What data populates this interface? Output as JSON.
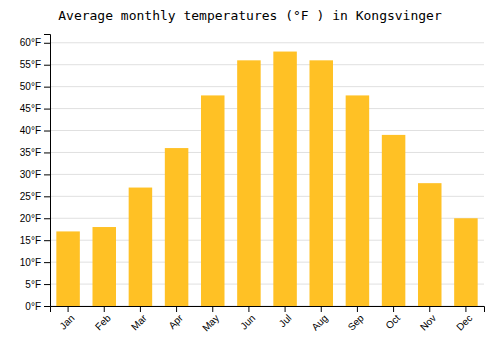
{
  "chart_data": {
    "type": "bar",
    "title": "Average monthly temperatures (°F ) in Kongsvinger",
    "categories": [
      "Jan",
      "Feb",
      "Mar",
      "Apr",
      "May",
      "Jun",
      "Jul",
      "Aug",
      "Sep",
      "Oct",
      "Nov",
      "Dec"
    ],
    "values": [
      17,
      18,
      27,
      36,
      48,
      56,
      58,
      56,
      48,
      39,
      28,
      20
    ],
    "color": "#FFC125",
    "ylim": [
      0,
      62
    ],
    "yticks": [
      {
        "value": 0,
        "label": "0°F"
      },
      {
        "value": 5,
        "label": "5°F"
      },
      {
        "value": 10,
        "label": "10°F"
      },
      {
        "value": 15,
        "label": "15°F"
      },
      {
        "value": 20,
        "label": "20°F"
      },
      {
        "value": 25,
        "label": "25°F"
      },
      {
        "value": 30,
        "label": "30°F"
      },
      {
        "value": 35,
        "label": "35°F"
      },
      {
        "value": 40,
        "label": "40°F"
      },
      {
        "value": 45,
        "label": "45°F"
      },
      {
        "value": 50,
        "label": "50°F"
      },
      {
        "value": 55,
        "label": "55°F"
      },
      {
        "value": 60,
        "label": "60°F"
      }
    ],
    "grid": true
  }
}
